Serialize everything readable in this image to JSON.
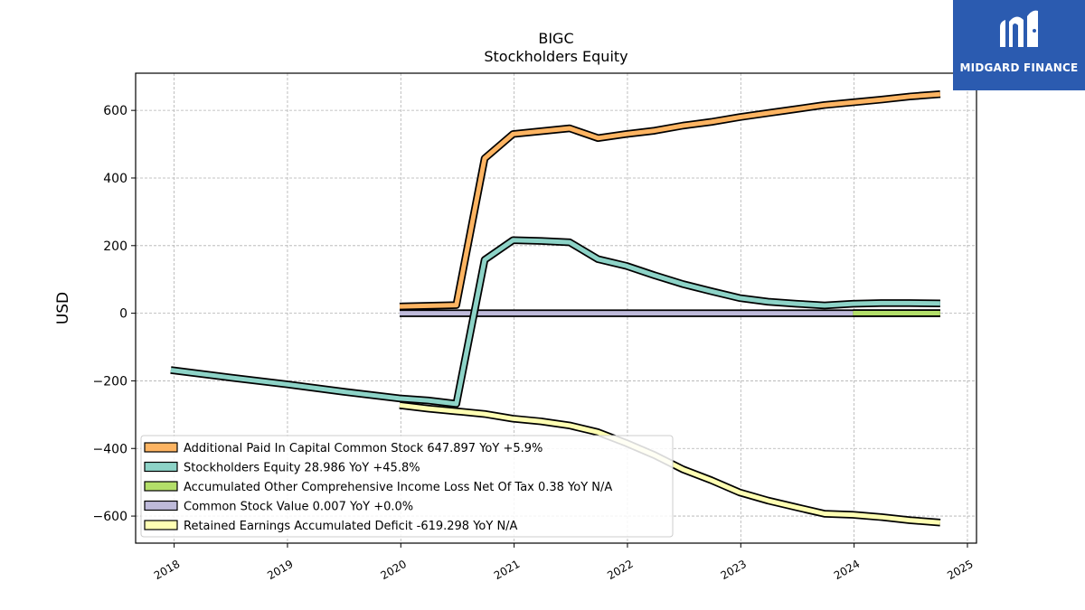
{
  "chart_data": {
    "type": "line",
    "title": "BIGC",
    "subtitle": "Stockholders  Equity",
    "xlabel": "",
    "ylabel": "USD",
    "xlim": [
      2017.66,
      2025.08
    ],
    "ylim": [
      -680,
      710
    ],
    "x_ticks": [
      2018,
      2019,
      2020,
      2021,
      2022,
      2023,
      2024,
      2025
    ],
    "x_tick_labels": [
      "2018",
      "2019",
      "2020",
      "2021",
      "2022",
      "2023",
      "2024",
      "2025"
    ],
    "y_ticks": [
      -600,
      -400,
      -200,
      0,
      200,
      400,
      600
    ],
    "y_tick_labels": [
      "−600",
      "−400",
      "−200",
      "0",
      "200",
      "400",
      "600"
    ],
    "grid": true,
    "legend_position": "lower-left",
    "series": [
      {
        "name": "Additional Paid In Capital Common Stock",
        "legend_label": "Additional Paid In Capital Common Stock  647.897 YoY +5.9%",
        "color": "#fdb462",
        "x": [
          2019.99,
          2020.49,
          2020.74,
          2020.99,
          2021.49,
          2021.74,
          2021.99,
          2022.24,
          2022.49,
          2022.74,
          2022.99,
          2023.24,
          2023.49,
          2023.74,
          2023.99,
          2024.24,
          2024.49,
          2024.76
        ],
        "y": [
          20,
          24,
          458,
          530,
          547,
          518,
          530,
          540,
          555,
          566,
          580,
          592,
          604,
          616,
          624,
          632,
          641,
          648
        ]
      },
      {
        "name": "Stockholders Equity",
        "legend_label": "Stockholders Equity  28.986 YoY +45.8%",
        "color": "#8dd3c7",
        "x": [
          2017.97,
          2018.49,
          2018.99,
          2019.49,
          2019.99,
          2020.24,
          2020.49,
          2020.74,
          2020.99,
          2021.24,
          2021.49,
          2021.74,
          2021.99,
          2022.24,
          2022.49,
          2022.74,
          2022.99,
          2023.24,
          2023.49,
          2023.74,
          2023.99,
          2024.24,
          2024.49,
          2024.76
        ],
        "y": [
          -168,
          -190,
          -210,
          -232,
          -252,
          -258,
          -268,
          158,
          216,
          214,
          210,
          160,
          140,
          112,
          86,
          65,
          45,
          34,
          28,
          23,
          28,
          30,
          30,
          29
        ]
      },
      {
        "name": "Accumulated Other Comprehensive Income Loss Net Of Tax",
        "legend_label": "Accumulated Other Comprehensive Income Loss Net Of Tax  0.38 YoY N/A",
        "color": "#b3de69",
        "x": [
          2023.99,
          2024.24,
          2024.49,
          2024.76
        ],
        "y": [
          0.2,
          0.3,
          0.3,
          0.38
        ]
      },
      {
        "name": "Common Stock Value",
        "legend_label": "Common Stock Value  0.007 YoY +0.0%",
        "color": "#bebada",
        "x": [
          2019.99,
          2024.76
        ],
        "y": [
          0,
          0
        ]
      },
      {
        "name": "Retained Earnings Accumulated Deficit",
        "legend_label": "Retained Earnings Accumulated Deficit  -619.298 YoY N/A",
        "color": "#ffffb3",
        "x": [
          2019.99,
          2020.24,
          2020.49,
          2020.74,
          2020.99,
          2021.24,
          2021.49,
          2021.74,
          2021.99,
          2022.24,
          2022.49,
          2022.74,
          2022.99,
          2023.24,
          2023.49,
          2023.74,
          2023.99,
          2024.24,
          2024.49,
          2024.76
        ],
        "y": [
          -272,
          -282,
          -290,
          -298,
          -312,
          -320,
          -332,
          -352,
          -384,
          -420,
          -462,
          -494,
          -530,
          -554,
          -574,
          -593,
          -596,
          -603,
          -612,
          -619
        ]
      }
    ]
  },
  "logo": {
    "text": "MIDGARD FINANCE",
    "bg_color": "#2b5bb0"
  }
}
